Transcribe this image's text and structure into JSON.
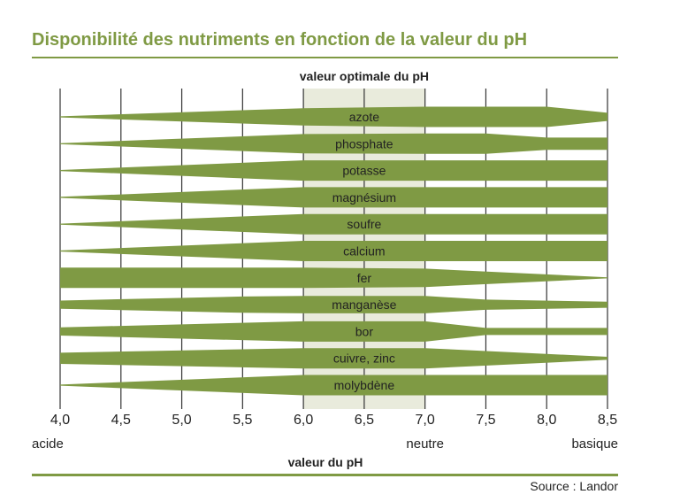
{
  "title": "Disponibilité des nutriments en fonction de la valeur du pH",
  "source": "Source : Landor",
  "colors": {
    "accent": "#7f9a44",
    "band": "#e9ebdc",
    "text": "#222222"
  },
  "chart_data": {
    "type": "bar",
    "title": "Disponibilité des nutriments en fonction de la valeur du pH",
    "xlabel": "valeur du pH",
    "xlim": [
      4.0,
      8.5
    ],
    "x_ticks": [
      "4,0",
      "4,5",
      "5,0",
      "5,5",
      "6,0",
      "6,5",
      "7,0",
      "7,5",
      "8,0",
      "8,5"
    ],
    "x_tick_values": [
      4.0,
      4.5,
      5.0,
      5.5,
      6.0,
      6.5,
      7.0,
      7.5,
      8.0,
      8.5
    ],
    "optimal_range": {
      "label": "valeur optimale du pH",
      "from": 6.0,
      "to": 7.0
    },
    "scale_labels": [
      {
        "label": "acide",
        "ph": 4.0
      },
      {
        "label": "neutre",
        "ph": 7.0
      },
      {
        "label": "basique",
        "ph": 8.5
      }
    ],
    "value_unit": "relative availability (0–1)",
    "series": [
      {
        "name": "azote",
        "points": [
          [
            4.0,
            0.05
          ],
          [
            6.0,
            0.85
          ],
          [
            7.0,
            1.0
          ],
          [
            8.0,
            1.0
          ],
          [
            8.5,
            0.4
          ]
        ]
      },
      {
        "name": "phosphate",
        "points": [
          [
            4.0,
            0.05
          ],
          [
            6.0,
            0.95
          ],
          [
            7.0,
            1.0
          ],
          [
            7.5,
            1.0
          ],
          [
            8.0,
            0.6
          ],
          [
            8.5,
            0.6
          ]
        ]
      },
      {
        "name": "potasse",
        "points": [
          [
            4.0,
            0.05
          ],
          [
            6.0,
            1.0
          ],
          [
            8.5,
            1.0
          ]
        ]
      },
      {
        "name": "magnésium",
        "points": [
          [
            4.0,
            0.05
          ],
          [
            6.0,
            1.0
          ],
          [
            8.5,
            1.0
          ]
        ]
      },
      {
        "name": "soufre",
        "points": [
          [
            4.0,
            0.05
          ],
          [
            6.0,
            1.0
          ],
          [
            8.5,
            1.0
          ]
        ]
      },
      {
        "name": "calcium",
        "points": [
          [
            4.0,
            0.05
          ],
          [
            6.0,
            1.0
          ],
          [
            8.5,
            1.0
          ]
        ]
      },
      {
        "name": "fer",
        "points": [
          [
            4.0,
            1.0
          ],
          [
            6.0,
            1.0
          ],
          [
            7.0,
            0.9
          ],
          [
            8.5,
            0.05
          ]
        ]
      },
      {
        "name": "manganèse",
        "points": [
          [
            4.0,
            0.4
          ],
          [
            5.5,
            0.8
          ],
          [
            6.0,
            0.85
          ],
          [
            7.0,
            0.85
          ],
          [
            7.5,
            0.5
          ],
          [
            8.5,
            0.3
          ]
        ]
      },
      {
        "name": "bor",
        "points": [
          [
            4.0,
            0.4
          ],
          [
            6.0,
            1.0
          ],
          [
            7.0,
            1.0
          ],
          [
            7.5,
            0.35
          ],
          [
            8.5,
            0.35
          ]
        ]
      },
      {
        "name": "cuivre, zinc",
        "points": [
          [
            4.0,
            0.55
          ],
          [
            6.0,
            1.0
          ],
          [
            7.0,
            1.0
          ],
          [
            8.5,
            0.15
          ]
        ]
      },
      {
        "name": "molybdène",
        "points": [
          [
            4.0,
            0.05
          ],
          [
            6.0,
            1.0
          ],
          [
            8.5,
            1.0
          ]
        ]
      }
    ]
  }
}
